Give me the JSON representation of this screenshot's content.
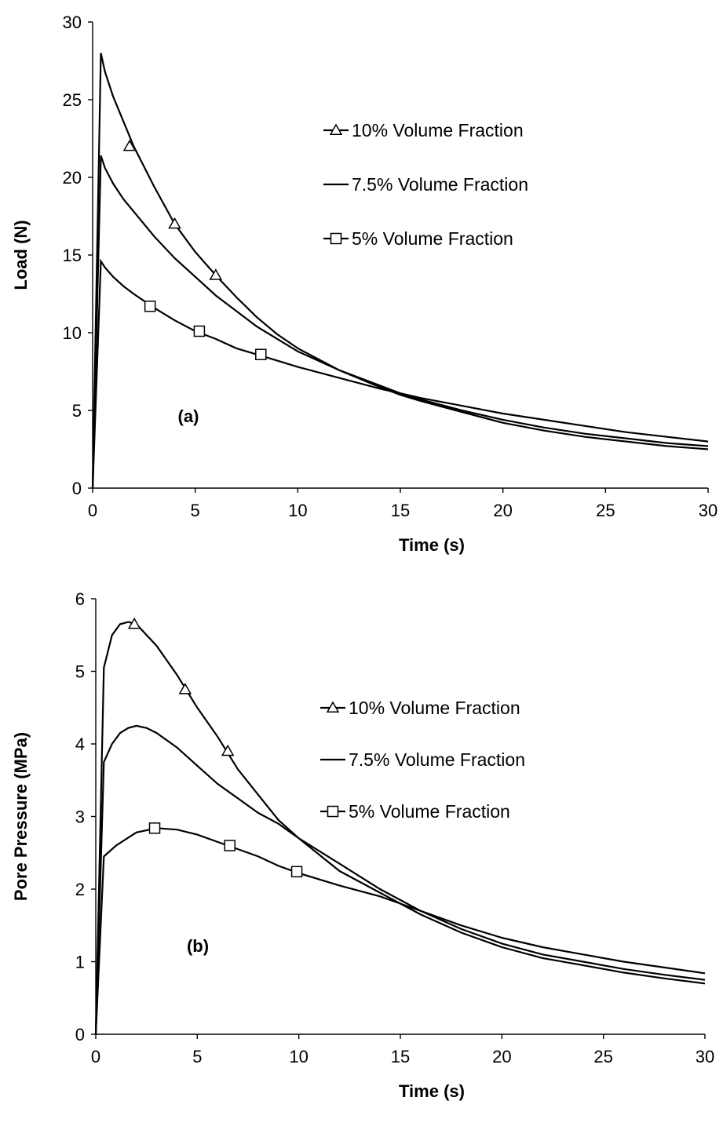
{
  "chart_data": [
    {
      "type": "line",
      "panel_label": "(a)",
      "xlabel": "Time (s)",
      "ylabel": "Load (N)",
      "xlim": [
        0,
        30
      ],
      "ylim": [
        0,
        30
      ],
      "xticks": [
        0,
        5,
        10,
        15,
        20,
        25,
        30
      ],
      "yticks": [
        0,
        5,
        10,
        15,
        20,
        25,
        30
      ],
      "grid": false,
      "legend_position": "top-right",
      "series": [
        {
          "name": "10% Volume Fraction",
          "marker": "triangle",
          "x": [
            0,
            0.4,
            0.6,
            1,
            1.5,
            2,
            3,
            4,
            5,
            6,
            7,
            8,
            9,
            10,
            12,
            14,
            15,
            16,
            18,
            20,
            22,
            24,
            26,
            28,
            30
          ],
          "y": [
            0,
            28.0,
            26.8,
            25.2,
            23.6,
            22.0,
            19.4,
            17.0,
            15.2,
            13.7,
            12.3,
            11.0,
            9.9,
            9.0,
            7.6,
            6.5,
            6.0,
            5.6,
            4.9,
            4.2,
            3.7,
            3.3,
            3.0,
            2.7,
            2.5
          ],
          "marker_x": [
            1.8,
            4.0,
            6.0
          ],
          "marker_y": [
            22.0,
            17.0,
            13.7
          ]
        },
        {
          "name": "7.5% Volume Fraction",
          "marker": "none",
          "x": [
            0,
            0.4,
            0.6,
            1,
            1.5,
            2,
            3,
            4,
            5,
            6,
            7,
            8,
            9,
            10,
            12,
            14,
            15,
            16,
            18,
            20,
            22,
            24,
            26,
            28,
            30
          ],
          "y": [
            0,
            21.4,
            20.6,
            19.6,
            18.6,
            17.8,
            16.2,
            14.8,
            13.6,
            12.4,
            11.4,
            10.4,
            9.6,
            8.8,
            7.6,
            6.6,
            6.1,
            5.7,
            5.0,
            4.4,
            3.9,
            3.5,
            3.2,
            2.9,
            2.7
          ],
          "marker_x": [],
          "marker_y": []
        },
        {
          "name": "5% Volume Fraction",
          "marker": "square",
          "x": [
            0,
            0.4,
            0.6,
            1,
            1.5,
            2,
            3,
            4,
            5,
            6,
            7,
            8,
            9,
            10,
            12,
            14,
            15,
            16,
            18,
            20,
            22,
            24,
            26,
            28,
            30
          ],
          "y": [
            0,
            14.6,
            14.2,
            13.6,
            13.0,
            12.5,
            11.6,
            10.8,
            10.1,
            9.6,
            9.0,
            8.6,
            8.2,
            7.8,
            7.1,
            6.4,
            6.1,
            5.8,
            5.3,
            4.8,
            4.4,
            4.0,
            3.6,
            3.3,
            3.0
          ],
          "marker_x": [
            2.8,
            5.2,
            8.2
          ],
          "marker_y": [
            11.7,
            10.1,
            8.6
          ]
        }
      ]
    },
    {
      "type": "line",
      "panel_label": "(b)",
      "xlabel": "Time (s)",
      "ylabel": "Pore Pressure (MPa)",
      "xlim": [
        0,
        30
      ],
      "ylim": [
        0,
        6
      ],
      "xticks": [
        0,
        5,
        10,
        15,
        20,
        25,
        30
      ],
      "yticks": [
        0,
        1,
        2,
        3,
        4,
        5,
        6
      ],
      "grid": false,
      "legend_position": "right",
      "series": [
        {
          "name": "10% Volume Fraction",
          "marker": "triangle",
          "x": [
            0,
            0.4,
            0.8,
            1.2,
            1.6,
            2,
            3,
            4,
            5,
            6,
            7,
            8,
            9,
            10,
            12,
            14,
            15,
            16,
            18,
            20,
            22,
            24,
            26,
            28,
            30
          ],
          "y": [
            0,
            5.05,
            5.5,
            5.65,
            5.68,
            5.65,
            5.35,
            4.95,
            4.5,
            4.1,
            3.65,
            3.3,
            2.95,
            2.7,
            2.25,
            1.95,
            1.8,
            1.65,
            1.4,
            1.2,
            1.05,
            0.95,
            0.85,
            0.77,
            0.7
          ],
          "marker_x": [
            1.9,
            4.4,
            6.5
          ],
          "marker_y": [
            5.65,
            4.75,
            3.9
          ]
        },
        {
          "name": "7.5% Volume Fraction",
          "marker": "none",
          "x": [
            0,
            0.4,
            0.8,
            1.2,
            1.6,
            2,
            2.5,
            3,
            4,
            5,
            6,
            7,
            8,
            9,
            10,
            12,
            14,
            15,
            16,
            18,
            20,
            22,
            24,
            26,
            28,
            30
          ],
          "y": [
            0,
            3.75,
            4.0,
            4.15,
            4.22,
            4.25,
            4.22,
            4.15,
            3.95,
            3.7,
            3.45,
            3.25,
            3.05,
            2.9,
            2.7,
            2.35,
            2.0,
            1.85,
            1.7,
            1.45,
            1.25,
            1.1,
            1.0,
            0.9,
            0.82,
            0.75
          ],
          "marker_x": [],
          "marker_y": []
        },
        {
          "name": "5% Volume Fraction",
          "marker": "square",
          "x": [
            0,
            0.4,
            1,
            2,
            3,
            4,
            5,
            6,
            7,
            8,
            9,
            10,
            12,
            14,
            15,
            16,
            18,
            20,
            22,
            24,
            26,
            28,
            30
          ],
          "y": [
            0,
            2.45,
            2.6,
            2.78,
            2.84,
            2.82,
            2.75,
            2.65,
            2.55,
            2.45,
            2.32,
            2.22,
            2.05,
            1.9,
            1.8,
            1.7,
            1.5,
            1.33,
            1.2,
            1.1,
            1.0,
            0.92,
            0.84
          ],
          "marker_x": [
            2.9,
            6.6,
            9.9
          ],
          "marker_y": [
            2.84,
            2.6,
            2.24
          ]
        }
      ]
    }
  ]
}
